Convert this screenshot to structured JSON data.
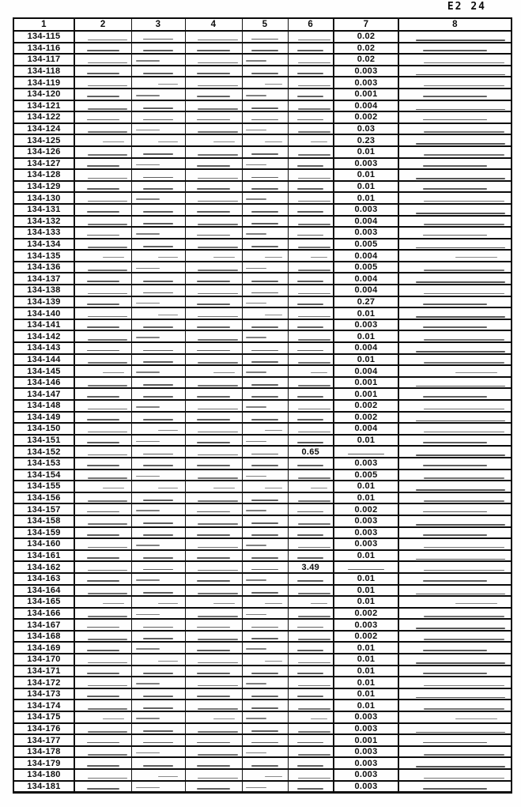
{
  "page": {
    "stamp": "E2 24"
  },
  "table": {
    "headers": [
      "1",
      "2",
      "3",
      "4",
      "5",
      "6",
      "7",
      "8"
    ],
    "rows": [
      [
        "134-115",
        "",
        "",
        "",
        "",
        "",
        "0.02",
        ""
      ],
      [
        "134-116",
        "",
        "",
        "",
        "",
        "",
        "0.02",
        ""
      ],
      [
        "134-117",
        "",
        "",
        "",
        "",
        "",
        "0.02",
        ""
      ],
      [
        "134-118",
        "",
        "",
        "",
        "",
        "",
        "0.003",
        ""
      ],
      [
        "134-119",
        "",
        "",
        "",
        "",
        "",
        "0.003",
        ""
      ],
      [
        "134-120",
        "",
        "",
        "",
        "",
        "",
        "0.001",
        ""
      ],
      [
        "134-121",
        "",
        "",
        "",
        "",
        "",
        "0.004",
        ""
      ],
      [
        "134-122",
        "",
        "",
        "",
        "",
        "",
        "0.002",
        ""
      ],
      [
        "134-124",
        "",
        "",
        "",
        "",
        "",
        "0.03",
        ""
      ],
      [
        "134-125",
        "",
        "",
        "",
        "",
        "",
        "0.23",
        ""
      ],
      [
        "134-126",
        "",
        "",
        "",
        "",
        "",
        "0.01",
        ""
      ],
      [
        "134-127",
        "",
        "",
        "",
        "",
        "",
        "0.003",
        ""
      ],
      [
        "134-128",
        "",
        "",
        "",
        "",
        "",
        "0.01",
        ""
      ],
      [
        "134-129",
        "",
        "",
        "",
        "",
        "",
        "0.01",
        ""
      ],
      [
        "134-130",
        "",
        "",
        "",
        "",
        "",
        "0.01",
        ""
      ],
      [
        "134-131",
        "",
        "",
        "",
        "",
        "",
        "0.003",
        ""
      ],
      [
        "134-132",
        "",
        "",
        "",
        "",
        "",
        "0.004",
        ""
      ],
      [
        "134-133",
        "",
        "",
        "",
        "",
        "",
        "0.003",
        ""
      ],
      [
        "134-134",
        "",
        "",
        "",
        "",
        "",
        "0.005",
        ""
      ],
      [
        "134-135",
        "",
        "",
        "",
        "",
        "",
        "0.004",
        ""
      ],
      [
        "134-136",
        "",
        "",
        "",
        "",
        "",
        "0.005",
        ""
      ],
      [
        "134-137",
        "",
        "",
        "",
        "",
        "",
        "0.004",
        ""
      ],
      [
        "134-138",
        "",
        "",
        "",
        "",
        "",
        "0.004",
        ""
      ],
      [
        "134-139",
        "",
        "",
        "",
        "",
        "",
        "0.27",
        ""
      ],
      [
        "134-140",
        "",
        "",
        "",
        "",
        "",
        "0.01",
        ""
      ],
      [
        "134-141",
        "",
        "",
        "",
        "",
        "",
        "0.003",
        ""
      ],
      [
        "134-142",
        "",
        "",
        "",
        "",
        "",
        "0.01",
        ""
      ],
      [
        "134-143",
        "",
        "",
        "",
        "",
        "",
        "0.004",
        ""
      ],
      [
        "134-144",
        "",
        "",
        "",
        "",
        "",
        "0.01",
        ""
      ],
      [
        "134-145",
        "",
        "",
        "",
        "",
        "",
        "0.004",
        ""
      ],
      [
        "134-146",
        "",
        "",
        "",
        "",
        "",
        "0.001",
        ""
      ],
      [
        "134-147",
        "",
        "",
        "",
        "",
        "",
        "0.001",
        ""
      ],
      [
        "134-148",
        "",
        "",
        "",
        "",
        "",
        "0.002",
        ""
      ],
      [
        "134-149",
        "",
        "",
        "",
        "",
        "",
        "0.002",
        ""
      ],
      [
        "134-150",
        "",
        "",
        "",
        "",
        "",
        "0.004",
        ""
      ],
      [
        "134-151",
        "",
        "",
        "",
        "",
        "",
        "0.01",
        ""
      ],
      [
        "134-152",
        "",
        "",
        "",
        "",
        "0.65",
        "",
        ""
      ],
      [
        "134-153",
        "",
        "",
        "",
        "",
        "",
        "0.003",
        ""
      ],
      [
        "134-154",
        "",
        "",
        "",
        "",
        "",
        "0.005",
        ""
      ],
      [
        "134-155",
        "",
        "",
        "",
        "",
        "",
        "0.01",
        ""
      ],
      [
        "134-156",
        "",
        "",
        "",
        "",
        "",
        "0.01",
        ""
      ],
      [
        "134-157",
        "",
        "",
        "",
        "",
        "",
        "0.002",
        ""
      ],
      [
        "134-158",
        "",
        "",
        "",
        "",
        "",
        "0.003",
        ""
      ],
      [
        "134-159",
        "",
        "",
        "",
        "",
        "",
        "0.003",
        ""
      ],
      [
        "134-160",
        "",
        "",
        "",
        "",
        "",
        "0.003",
        ""
      ],
      [
        "134-161",
        "",
        "",
        "",
        "",
        "",
        "0.01",
        ""
      ],
      [
        "134-162",
        "",
        "",
        "",
        "",
        "3.49",
        "",
        ""
      ],
      [
        "134-163",
        "",
        "",
        "",
        "",
        "",
        "0.01",
        ""
      ],
      [
        "134-164",
        "",
        "",
        "",
        "",
        "",
        "0.01",
        ""
      ],
      [
        "134-165",
        "",
        "",
        "",
        "",
        "",
        "0.01",
        ""
      ],
      [
        "134-166",
        "",
        "",
        "",
        "",
        "",
        "0.002",
        ""
      ],
      [
        "134-167",
        "",
        "",
        "",
        "",
        "",
        "0.003",
        ""
      ],
      [
        "134-168",
        "",
        "",
        "",
        "",
        "",
        "0.002",
        ""
      ],
      [
        "134-169",
        "",
        "",
        "",
        "",
        "",
        "0.01",
        ""
      ],
      [
        "134-170",
        "",
        "",
        "",
        "",
        "",
        "0.01",
        ""
      ],
      [
        "134-171",
        "",
        "",
        "",
        "",
        "",
        "0.01",
        ""
      ],
      [
        "134-172",
        "",
        "",
        "",
        "",
        "",
        "0.01",
        ""
      ],
      [
        "134-173",
        "",
        "",
        "",
        "",
        "",
        "0.01",
        ""
      ],
      [
        "134-174",
        "",
        "",
        "",
        "",
        "",
        "0.01",
        ""
      ],
      [
        "134-175",
        "",
        "",
        "",
        "",
        "",
        "0.003",
        ""
      ],
      [
        "134-176",
        "",
        "",
        "",
        "",
        "",
        "0.003",
        ""
      ],
      [
        "134-177",
        "",
        "",
        "",
        "",
        "",
        "0.001",
        ""
      ],
      [
        "134-178",
        "",
        "",
        "",
        "",
        "",
        "0.003",
        ""
      ],
      [
        "134-179",
        "",
        "",
        "",
        "",
        "",
        "0.003",
        ""
      ],
      [
        "134-180",
        "",
        "",
        "",
        "",
        "",
        "0.003",
        ""
      ],
      [
        "134-181",
        "",
        "",
        "",
        "",
        "",
        "0.003",
        ""
      ]
    ]
  }
}
